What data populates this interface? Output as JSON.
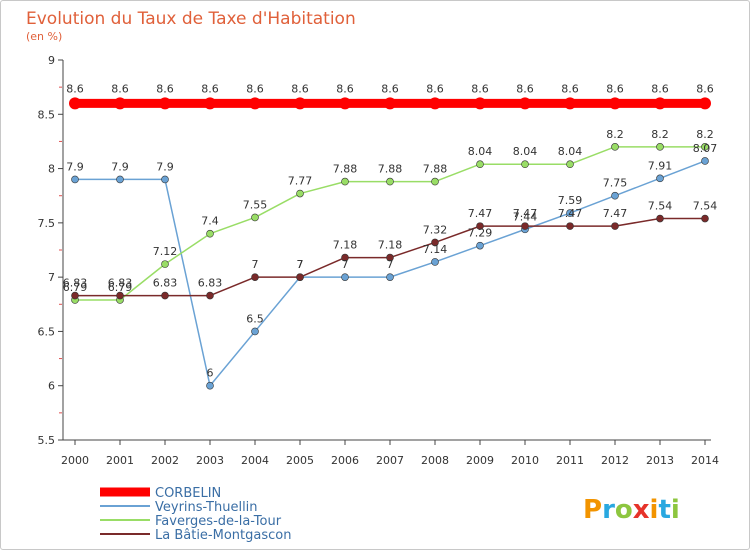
{
  "chart_data": {
    "type": "line",
    "title": "Evolution du Taux de Taxe d'Habitation",
    "subtitle": "(en %)",
    "xlabel": "",
    "ylabel": "",
    "categories": [
      "2000",
      "2001",
      "2002",
      "2003",
      "2004",
      "2005",
      "2006",
      "2007",
      "2008",
      "2009",
      "2010",
      "2011",
      "2012",
      "2013",
      "2014"
    ],
    "ylim": [
      5.5,
      9
    ],
    "yticks": [
      "5.5",
      "6",
      "6.5",
      "7",
      "7.5",
      "8",
      "8.5",
      "9"
    ],
    "grid": false,
    "legend_position": "bottom-left",
    "series": [
      {
        "name": "CORBELIN",
        "color": "#ff0000",
        "values": [
          8.6,
          8.6,
          8.6,
          8.6,
          8.6,
          8.6,
          8.6,
          8.6,
          8.6,
          8.6,
          8.6,
          8.6,
          8.6,
          8.6,
          8.6
        ],
        "labels": [
          "8.6",
          "8.6",
          "8.6",
          "8.6",
          "8.6",
          "8.6",
          "8.6",
          "8.6",
          "8.6",
          "8.6",
          "8.6",
          "8.6",
          "8.6",
          "8.6",
          "8.6"
        ]
      },
      {
        "name": "Veyrins-Thuellin",
        "color": "#6aa2d4",
        "values": [
          7.9,
          7.9,
          7.9,
          6,
          6.5,
          7,
          7,
          7,
          7.14,
          7.29,
          7.44,
          7.59,
          7.75,
          7.91,
          8.07
        ],
        "labels": [
          "7.9",
          "7.9",
          "7.9",
          "6",
          "6.5",
          "7",
          "7",
          "7",
          "7.14",
          "7.29",
          "7.44",
          "7.59",
          "7.75",
          "7.91",
          "8.07"
        ]
      },
      {
        "name": "Faverges-de-la-Tour",
        "color": "#99dd66",
        "values": [
          6.79,
          6.79,
          7.12,
          7.4,
          7.55,
          7.77,
          7.88,
          7.88,
          7.88,
          8.04,
          8.04,
          8.04,
          8.2,
          8.2,
          8.2
        ],
        "labels": [
          "6.79",
          "6.79",
          "7.12",
          "7.4",
          "7.55",
          "7.77",
          "7.88",
          "7.88",
          "7.88",
          "8.04",
          "8.04",
          "8.04",
          "8.2",
          "8.2",
          "8.2"
        ]
      },
      {
        "name": "La Bâtie-Montgascon",
        "color": "#7a2a2a",
        "values": [
          6.83,
          6.83,
          6.83,
          6.83,
          7,
          7,
          7.18,
          7.18,
          7.32,
          7.47,
          7.47,
          7.47,
          7.47,
          7.54,
          7.54
        ],
        "labels": [
          "6.83",
          "6.83",
          "6.83",
          "6.83",
          "7",
          "7",
          "7.18",
          "7.18",
          "7.32",
          "7.47",
          "7.47",
          "7.47",
          "7.47",
          "7.54",
          "7.54"
        ]
      }
    ]
  },
  "brand": {
    "letters": [
      "P",
      "r",
      "o",
      "x",
      "i",
      "t",
      "i"
    ],
    "colors": [
      "#f29400",
      "#29a8e0",
      "#8dc63f",
      "#e6332a",
      "#f29400",
      "#29a8e0",
      "#8dc63f"
    ]
  }
}
